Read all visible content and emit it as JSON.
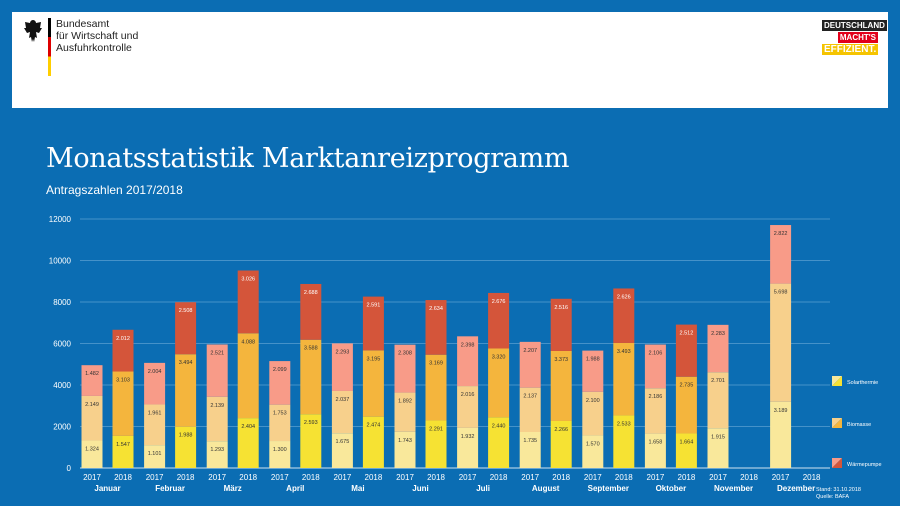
{
  "header": {
    "org_lines": [
      "Bundesamt",
      "für Wirtschaft und",
      "Ausfuhrkontrolle"
    ],
    "campaign_logo": [
      "DEUTSCHLAND",
      "MACHT'S",
      "EFFIZIENT."
    ]
  },
  "chart_data": {
    "type": "bar",
    "stacked": true,
    "title": "Monatsstatistik Marktanreizprogramm",
    "subtitle": "Antragszahlen 2017/2018",
    "xlabel": "",
    "ylabel": "",
    "ylim": [
      0,
      12000
    ],
    "yticks": [
      0,
      2000,
      4000,
      6000,
      8000,
      10000,
      12000
    ],
    "ytick_labels": [
      "0",
      "2000",
      "4000",
      "6000",
      "8000",
      "10000",
      "12000"
    ],
    "grid": true,
    "legend_position": "right",
    "years": [
      "2017",
      "2018"
    ],
    "categories": [
      "Januar",
      "Februar",
      "März",
      "April",
      "Mai",
      "Juni",
      "Juli",
      "August",
      "September",
      "Oktober",
      "November",
      "Dezember"
    ],
    "series": [
      {
        "name": "Solarthermie",
        "values_2017": [
          1324,
          1101,
          1293,
          1300,
          1675,
          1743,
          1932,
          1735,
          1570,
          1658,
          1915,
          3189
        ],
        "values_2018": [
          1547,
          1988,
          2404,
          2593,
          2474,
          2291,
          2440,
          2266,
          2533,
          1664,
          null,
          null
        ],
        "labels_2017": [
          "1.324",
          "1.101",
          "1.293",
          "1.300",
          "1.675",
          "1.743",
          "1.932",
          "1.735",
          "1.570",
          "1.658",
          "1.915",
          "3.189"
        ],
        "labels_2018": [
          "1.547",
          "1.988",
          "2.404",
          "2.593",
          "2.474",
          "2.291",
          "2.440",
          "2.266",
          "2.533",
          "1.664",
          null,
          null
        ],
        "colors": [
          "#f9e89b",
          "#f6e233"
        ]
      },
      {
        "name": "Biomasse",
        "values_2017": [
          2149,
          1961,
          2139,
          1753,
          2037,
          1892,
          2016,
          2137,
          2100,
          2186,
          2701,
          5698
        ],
        "values_2018": [
          3103,
          3494,
          4088,
          3588,
          3195,
          3169,
          3320,
          3373,
          3493,
          2735,
          null,
          null
        ],
        "labels_2017": [
          "2.149",
          "1.961",
          "2.139",
          "1.753",
          "2.037",
          "1.892",
          "2.016",
          "2.137",
          "2.100",
          "2.186",
          "2.701",
          "5.698"
        ],
        "labels_2018": [
          "3.103",
          "3.494",
          "4.088",
          "3.588",
          "3.195",
          "3.169",
          "3.320",
          "3.373",
          "3.493",
          "2.735",
          null,
          null
        ],
        "colors": [
          "#f7d08c",
          "#f4b53d"
        ]
      },
      {
        "name": "Wärmepumpe",
        "values_2017": [
          1482,
          2004,
          2521,
          2099,
          2293,
          2308,
          2398,
          2207,
          1988,
          2106,
          2283,
          2822
        ],
        "values_2018": [
          2012,
          2508,
          3026,
          2688,
          2591,
          2634,
          2676,
          2516,
          2626,
          2512,
          null,
          null
        ],
        "labels_2017": [
          "1.482",
          "2.004",
          "2.521",
          "2.099",
          "2.293",
          "2.308",
          "2.398",
          "2.207",
          "1.988",
          "2.106",
          "2.283",
          "2.822"
        ],
        "labels_2018": [
          "2.012",
          "2.508",
          "3.026",
          "2.688",
          "2.591",
          "2.634",
          "2.676",
          "2.516",
          "2.626",
          "2.512",
          null,
          null
        ],
        "colors": [
          "#f89b88",
          "#d4553a"
        ]
      }
    ],
    "footnote": [
      "Stand: 31.10.2018",
      "Quelle: BAFA"
    ]
  }
}
